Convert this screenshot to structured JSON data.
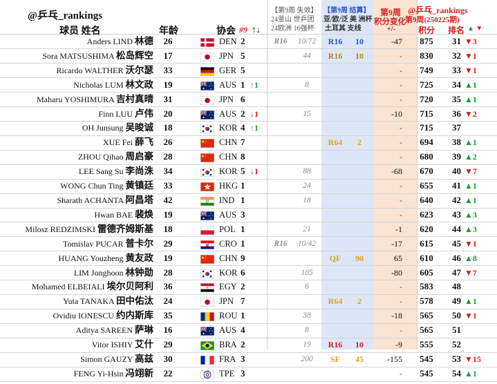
{
  "brand": "@乒乓_rankings",
  "headers": {
    "player": "球员 姓名",
    "age": "年龄",
    "association": "协会",
    "rank9": "#9",
    "rank9_arrows": "↑↓",
    "prev_lost_title": "【第9周 失效】",
    "prev_lost_s1": "24釜山 世乒团",
    "prev_lost_s2": "24欧洲 16强杯",
    "settled_title": "【第9周 结算】",
    "settled_s1": "亚/欧/泛 美 洲杯",
    "settled_s2": "土耳其 支线",
    "change_title": "第9周",
    "change_sub": "积分变化",
    "change_unit": "+/-",
    "right_brand": "@乒乓_rankings",
    "right_week": "第9周(250225期)",
    "points": "积分",
    "rank": "排名",
    "rank_arrows": "▲ ▼"
  },
  "colors": {
    "up": "#1d9a3c",
    "down": "#d42020",
    "blue_text": "#2a55c8",
    "gold_text": "#d9a520",
    "olive_text": "#b08a10"
  },
  "rows": [
    {
      "name_en": "Anders LIND",
      "name_cn": "林德",
      "age": "26",
      "flag": "DEN",
      "country": "DEN",
      "rank9": "2",
      "rank9_change": "",
      "s1": "R16",
      "s2": "10/72",
      "w1": "R16",
      "w1_color": "#2a55c8",
      "w2": "10",
      "w2_color": "#2a55c8",
      "pc": "-47",
      "pts": "875",
      "rank": "31",
      "chg": "▼3",
      "chg_dir": "down"
    },
    {
      "name_en": "Sora MATSUSHIMA",
      "name_cn": "松岛辉空",
      "age": "17",
      "flag": "JPN",
      "country": "JPN",
      "rank9": "5",
      "rank9_change": "",
      "s1": "",
      "s2": "44",
      "w1": "R16",
      "w1_color": "#b08a10",
      "w2": "10",
      "w2_color": "#b08a10",
      "pc": "-",
      "pts": "830",
      "rank": "32",
      "chg": "▼1",
      "chg_dir": "down"
    },
    {
      "name_en": "Ricardo WALTHER",
      "name_cn": "沃尔瑟",
      "age": "33",
      "flag": "GER",
      "country": "GER",
      "rank9": "5",
      "rank9_change": "",
      "s1": "",
      "s2": "",
      "w1": "",
      "w1_color": "",
      "w2": "",
      "w2_color": "",
      "pc": "-",
      "pts": "749",
      "rank": "33",
      "chg": "▼1",
      "chg_dir": "down"
    },
    {
      "name_en": "Nicholas LUM",
      "name_cn": "林文政",
      "age": "19",
      "flag": "AUS",
      "country": "AUS",
      "rank9": "1",
      "rank9_change": "↑1",
      "s1": "",
      "s2": "8",
      "w1": "",
      "w1_color": "",
      "w2": "",
      "w2_color": "",
      "pc": "-",
      "pts": "725",
      "rank": "34",
      "chg": "▲1",
      "chg_dir": "up"
    },
    {
      "name_en": "Maharu YOSHIMURA",
      "name_cn": "吉村真晴",
      "age": "31",
      "flag": "JPN",
      "country": "JPN",
      "rank9": "6",
      "rank9_change": "",
      "s1": "",
      "s2": "",
      "w1": "",
      "w1_color": "",
      "w2": "",
      "w2_color": "",
      "pc": "-",
      "pts": "720",
      "rank": "35",
      "chg": "▲1",
      "chg_dir": "up"
    },
    {
      "name_en": "Finn LUU",
      "name_cn": "卢伟",
      "age": "20",
      "flag": "AUS",
      "country": "AUS",
      "rank9": "2",
      "rank9_change": "↓1",
      "s1": "",
      "s2": "15",
      "w1": "",
      "w1_color": "",
      "w2": "",
      "w2_color": "",
      "pc": "-10",
      "pts": "715",
      "rank": "36",
      "chg": "▼2",
      "chg_dir": "down"
    },
    {
      "name_en": "OH Junsung",
      "name_cn": "吴晙诚",
      "age": "18",
      "flag": "KOR",
      "country": "KOR",
      "rank9": "4",
      "rank9_change": "↑1",
      "s1": "",
      "s2": "",
      "w1": "",
      "w1_color": "",
      "w2": "",
      "w2_color": "",
      "pc": "-",
      "pts": "715",
      "rank": "37",
      "chg": "",
      "chg_dir": ""
    },
    {
      "name_en": "XUE Fei",
      "name_cn": "薛飞",
      "age": "26",
      "flag": "CHN",
      "country": "CHN",
      "rank9": "7",
      "rank9_change": "",
      "s1": "",
      "s2": "",
      "w1": "R64",
      "w1_color": "#d9a520",
      "w2": "2",
      "w2_color": "#d9a520",
      "pc": "-",
      "pts": "694",
      "rank": "38",
      "chg": "▲1",
      "chg_dir": "up"
    },
    {
      "name_en": "ZHOU Qihao",
      "name_cn": "周启豪",
      "age": "28",
      "flag": "CHN",
      "country": "CHN",
      "rank9": "8",
      "rank9_change": "",
      "s1": "",
      "s2": "",
      "w1": "",
      "w1_color": "",
      "w2": "",
      "w2_color": "",
      "pc": "-",
      "pts": "680",
      "rank": "39",
      "chg": "▲2",
      "chg_dir": "up"
    },
    {
      "name_en": "LEE Sang Su",
      "name_cn": "李尚洙",
      "age": "34",
      "flag": "KOR",
      "country": "KOR",
      "rank9": "5",
      "rank9_change": "↓1",
      "s1": "",
      "s2": "88",
      "w1": "",
      "w1_color": "",
      "w2": "",
      "w2_color": "",
      "pc": "-68",
      "pts": "670",
      "rank": "40",
      "chg": "▼7",
      "chg_dir": "down"
    },
    {
      "name_en": "WONG Chun Ting",
      "name_cn": "黄镇廷",
      "age": "33",
      "flag": "HKG",
      "country": "HKG",
      "rank9": "1",
      "rank9_change": "",
      "s1": "",
      "s2": "24",
      "w1": "",
      "w1_color": "",
      "w2": "",
      "w2_color": "",
      "pc": "-",
      "pts": "655",
      "rank": "41",
      "chg": "▲1",
      "chg_dir": "up"
    },
    {
      "name_en": "Sharath ACHANTA",
      "name_cn": "阿昌塔",
      "age": "42",
      "flag": "IND",
      "country": "IND",
      "rank9": "1",
      "rank9_change": "",
      "s1": "",
      "s2": "18",
      "w1": "",
      "w1_color": "",
      "w2": "",
      "w2_color": "",
      "pc": "-",
      "pts": "640",
      "rank": "42",
      "chg": "▲1",
      "chg_dir": "up"
    },
    {
      "name_en": "Hwan BAE",
      "name_cn": "裴焕",
      "age": "19",
      "flag": "AUS",
      "country": "AUS",
      "rank9": "3",
      "rank9_change": "",
      "s1": "",
      "s2": "",
      "w1": "",
      "w1_color": "",
      "w2": "",
      "w2_color": "",
      "pc": "-",
      "pts": "623",
      "rank": "43",
      "chg": "▲3",
      "chg_dir": "up"
    },
    {
      "name_en": "Milosz REDZIMSKI",
      "name_cn": "雷德齐姆斯基",
      "age": "18",
      "flag": "POL",
      "country": "POL",
      "rank9": "1",
      "rank9_change": "",
      "s1": "",
      "s2": "21",
      "w1": "",
      "w1_color": "",
      "w2": "",
      "w2_color": "",
      "pc": "-1",
      "pts": "620",
      "rank": "44",
      "chg": "▲3",
      "chg_dir": "up"
    },
    {
      "name_en": "Tomislav PUCAR",
      "name_cn": "普卡尔",
      "age": "29",
      "flag": "CRO",
      "country": "CRO",
      "rank9": "1",
      "rank9_change": "",
      "s1": "R16",
      "s2": "10/42",
      "w1": "",
      "w1_color": "",
      "w2": "",
      "w2_color": "",
      "pc": "-17",
      "pts": "615",
      "rank": "45",
      "chg": "▼1",
      "chg_dir": "down"
    },
    {
      "name_en": "HUANG Youzheng",
      "name_cn": "黄友政",
      "age": "19",
      "flag": "CHN",
      "country": "CHN",
      "rank9": "9",
      "rank9_change": "",
      "s1": "",
      "s2": "",
      "w1": "QF",
      "w1_color": "#d9a520",
      "w2": "90",
      "w2_color": "#d9a520",
      "pc": "65",
      "pts": "610",
      "rank": "46",
      "chg": "▲8",
      "chg_dir": "up"
    },
    {
      "name_en": "LIM Jonghoon",
      "name_cn": "林钟勋",
      "age": "28",
      "flag": "KOR",
      "country": "KOR",
      "rank9": "6",
      "rank9_change": "",
      "s1": "",
      "s2": "105",
      "w1": "",
      "w1_color": "",
      "w2": "",
      "w2_color": "",
      "pc": "-80",
      "pts": "605",
      "rank": "47",
      "chg": "▼7",
      "chg_dir": "down"
    },
    {
      "name_en": "Mohamed ELBEIALI",
      "name_cn": "埃尔贝阿利",
      "age": "36",
      "flag": "EGY",
      "country": "EGY",
      "rank9": "2",
      "rank9_change": "",
      "s1": "",
      "s2": "6",
      "w1": "",
      "w1_color": "",
      "w2": "",
      "w2_color": "",
      "pc": "-",
      "pts": "583",
      "rank": "48",
      "chg": "",
      "chg_dir": ""
    },
    {
      "name_en": "Yuta TANAKA",
      "name_cn": "田中佑汰",
      "age": "24",
      "flag": "JPN",
      "country": "JPN",
      "rank9": "7",
      "rank9_change": "",
      "s1": "",
      "s2": "",
      "w1": "R64",
      "w1_color": "#d9a520",
      "w2": "2",
      "w2_color": "#d9a520",
      "pc": "-",
      "pts": "578",
      "rank": "49",
      "chg": "▲1",
      "chg_dir": "up"
    },
    {
      "name_en": "Ovidiu IONESCU",
      "name_cn": "约内斯库",
      "age": "35",
      "flag": "ROU",
      "country": "ROU",
      "rank9": "1",
      "rank9_change": "",
      "s1": "",
      "s2": "38",
      "w1": "",
      "w1_color": "",
      "w2": "",
      "w2_color": "",
      "pc": "-18",
      "pts": "565",
      "rank": "50",
      "chg": "▼1",
      "chg_dir": "down"
    },
    {
      "name_en": "Aditya SAREEN",
      "name_cn": "萨琳",
      "age": "16",
      "flag": "AUS",
      "country": "AUS",
      "rank9": "4",
      "rank9_change": "",
      "s1": "",
      "s2": "8",
      "w1": "",
      "w1_color": "",
      "w2": "",
      "w2_color": "",
      "pc": "-",
      "pts": "565",
      "rank": "51",
      "chg": "",
      "chg_dir": ""
    },
    {
      "name_en": "Vitor ISHIY",
      "name_cn": "艾什",
      "age": "29",
      "flag": "BRA",
      "country": "BRA",
      "rank9": "2",
      "rank9_change": "",
      "s1": "",
      "s2": "19",
      "w1": "R16",
      "w1_color": "#d42020",
      "w2": "10",
      "w2_color": "#d42020",
      "pc": "-9",
      "pts": "555",
      "rank": "52",
      "chg": "",
      "chg_dir": ""
    },
    {
      "name_en": "Simon GAUZY",
      "name_cn": "高兹",
      "age": "30",
      "flag": "FRA",
      "country": "FRA",
      "rank9": "3",
      "rank9_change": "",
      "s1": "",
      "s2": "200",
      "w1": "SF",
      "w1_color": "#d9a520",
      "w2": "45",
      "w2_color": "#d9a520",
      "pc": "-155",
      "pts": "545",
      "rank": "53",
      "chg": "▼15",
      "chg_dir": "down"
    },
    {
      "name_en": "FENG Yi-Hsin",
      "name_cn": "冯翊新",
      "age": "22",
      "flag": "TPE",
      "country": "TPE",
      "rank9": "3",
      "rank9_change": "",
      "s1": "",
      "s2": "",
      "w1": "",
      "w1_color": "",
      "w2": "",
      "w2_color": "",
      "pc": "-",
      "pts": "545",
      "rank": "54",
      "chg": "▲1",
      "chg_dir": "up"
    }
  ]
}
